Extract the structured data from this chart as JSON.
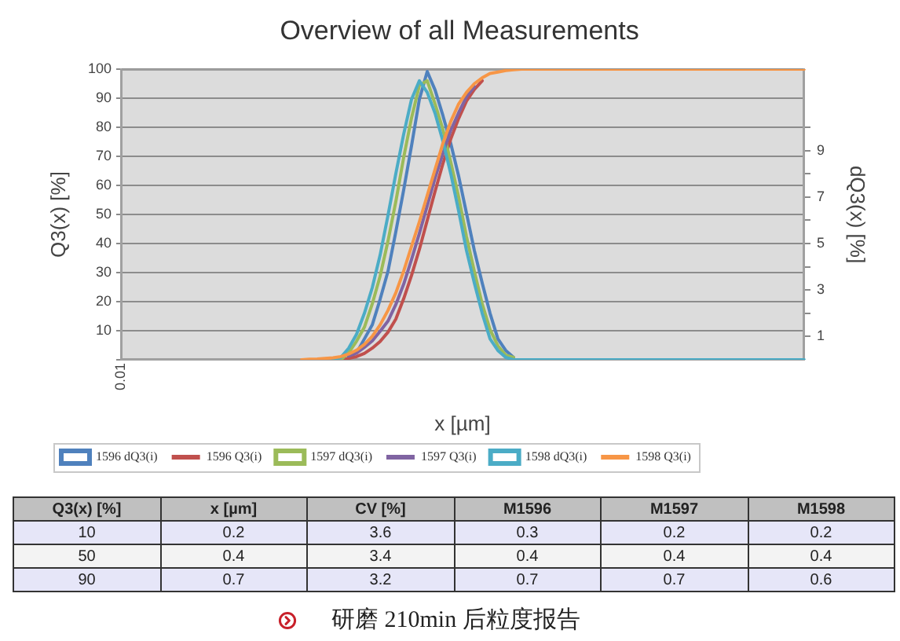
{
  "chart_data": [
    {
      "type": "line",
      "title": "Overview of all Measurements",
      "xlabel": "x [µm]",
      "ylabel": "Q3(x) [%]",
      "y2label": "dQ3(x) [%]",
      "grid": "y",
      "legend": "bottom",
      "categories": [
        "0.01",
        null,
        null,
        null,
        null,
        null,
        null,
        null,
        null,
        null,
        null,
        null,
        null,
        null,
        null,
        null,
        null,
        null,
        null,
        null,
        null,
        null,
        null,
        null,
        null,
        null,
        null,
        null,
        null,
        null,
        null,
        null,
        null,
        null,
        null,
        null,
        null,
        null,
        null,
        null,
        null,
        null,
        null,
        null,
        null,
        null,
        null,
        null,
        null,
        null,
        null,
        null,
        null,
        null,
        null,
        null,
        null,
        null,
        null,
        null,
        null,
        null,
        null,
        null,
        null,
        null,
        null,
        null,
        null,
        null,
        null,
        null,
        null,
        null,
        null,
        null,
        null,
        null,
        null,
        null,
        null,
        null,
        null,
        null,
        null,
        null,
        null,
        null
      ],
      "ylim": [
        0,
        100
      ],
      "yticks": [
        {
          "value": 0,
          "label": null
        },
        10,
        20,
        30,
        40,
        50,
        60,
        70,
        80,
        90,
        100
      ],
      "y2lim": [
        0,
        12.5
      ],
      "y2ticks": [
        1,
        {
          "value": 2,
          "label": null
        },
        3,
        {
          "value": 4,
          "label": null
        },
        5,
        {
          "value": 6,
          "label": null
        },
        7,
        {
          "value": 8,
          "label": null
        },
        9,
        {
          "value": 10,
          "label": null
        }
      ],
      "series": [
        {
          "name": "1596 dQ3(i)",
          "color": "#4f81bd",
          "axis": "y2",
          "values": [
            null,
            null,
            null,
            null,
            null,
            null,
            null,
            null,
            null,
            null,
            null,
            null,
            null,
            null,
            null,
            null,
            null,
            null,
            null,
            null,
            null,
            null,
            null,
            null,
            null,
            null,
            null,
            null,
            null,
            0.1,
            0.3,
            0.9,
            1.5,
            2.6,
            3.8,
            5.5,
            7.3,
            9.2,
            11.2,
            12.4,
            11.6,
            10.5,
            9.3,
            7.9,
            6.3,
            4.7,
            3.3,
            2.0,
            0.9,
            0.4,
            0.1,
            null,
            null,
            null,
            null,
            null,
            null,
            null,
            null,
            null,
            null,
            null,
            null,
            null,
            null,
            null,
            null,
            null,
            null,
            null,
            null,
            null,
            null,
            null,
            null,
            null,
            null,
            null,
            null,
            null,
            null,
            null,
            null,
            null,
            null,
            null,
            null,
            null
          ]
        },
        {
          "name": "1596 Q3(i)",
          "color": "#c0504d",
          "values": [
            null,
            null,
            null,
            null,
            null,
            null,
            null,
            null,
            null,
            null,
            null,
            null,
            null,
            null,
            null,
            null,
            null,
            null,
            null,
            null,
            null,
            null,
            null,
            null,
            null,
            null,
            null,
            null,
            0.2,
            0.5,
            1.1,
            2.2,
            4,
            6.3,
            9.5,
            14,
            21,
            29,
            38,
            48,
            58,
            67.5,
            76,
            83,
            89,
            93,
            96,
            null,
            null,
            null,
            null,
            null,
            null,
            null,
            null,
            null,
            null,
            null,
            null,
            null,
            null,
            null,
            null,
            null,
            null,
            null,
            null,
            null,
            null,
            null,
            null,
            null,
            null,
            null,
            null,
            null,
            null,
            null,
            null,
            null,
            null,
            null,
            null,
            null,
            null,
            null,
            null,
            null
          ]
        },
        {
          "name": "1597 dQ3(i)",
          "color": "#9bbb59",
          "axis": "y2",
          "values": [
            null,
            null,
            null,
            null,
            null,
            null,
            null,
            null,
            null,
            null,
            null,
            null,
            null,
            null,
            null,
            null,
            null,
            null,
            null,
            null,
            null,
            null,
            null,
            null,
            null,
            null,
            null,
            null,
            0,
            0.3,
            0.8,
            1.4,
            2.4,
            3.6,
            5.1,
            6.8,
            8.7,
            10.4,
            11.8,
            12.0,
            11.0,
            9.9,
            8.5,
            7.0,
            5.3,
            3.8,
            2.4,
            1.3,
            0.6,
            0.2,
            0.1,
            null,
            null,
            null,
            null,
            null,
            null,
            null,
            null,
            null,
            null,
            null,
            null,
            null,
            null,
            null,
            null,
            null,
            null,
            null,
            null,
            null,
            null,
            null,
            null,
            null,
            null,
            null,
            null,
            null,
            null,
            null,
            null,
            null,
            null,
            null,
            null,
            null
          ]
        },
        {
          "name": "1597 Q3(i)",
          "color": "#8064a2",
          "values": [
            null,
            null,
            null,
            null,
            null,
            null,
            null,
            null,
            null,
            null,
            null,
            null,
            null,
            null,
            null,
            null,
            null,
            null,
            null,
            null,
            null,
            null,
            null,
            null,
            null,
            null,
            null,
            null,
            null,
            1.3,
            2.3,
            4.3,
            6.5,
            9.8,
            13.3,
            19,
            26,
            34.5,
            43.5,
            53,
            62.5,
            71,
            79,
            85,
            90.5,
            94,
            null,
            null,
            null,
            null,
            null,
            null,
            null,
            null,
            null,
            null,
            null,
            null,
            null,
            null,
            null,
            null,
            null,
            null,
            null,
            null,
            null,
            null,
            null,
            null,
            null,
            null,
            null,
            null,
            null,
            null,
            null,
            null,
            null,
            null,
            null,
            null,
            null,
            null,
            null,
            null,
            null,
            null
          ]
        },
        {
          "name": "1598 dQ3(i)",
          "color": "#4bacc6",
          "axis": "y2",
          "values": [
            null,
            null,
            null,
            null,
            null,
            null,
            null,
            null,
            null,
            null,
            null,
            null,
            null,
            null,
            null,
            null,
            null,
            null,
            null,
            null,
            null,
            null,
            null,
            null,
            null,
            null,
            null,
            0,
            0.1,
            0.5,
            1.1,
            2.0,
            3.1,
            4.5,
            6.2,
            8.0,
            9.7,
            11.2,
            12.0,
            11.5,
            10.6,
            9.4,
            8.0,
            6.4,
            4.7,
            3.3,
            2.0,
            0.9,
            0.4,
            0.1,
            0,
            0,
            0,
            0,
            0,
            0,
            0,
            0,
            0,
            0,
            0,
            0,
            0,
            0,
            0,
            0,
            0,
            0,
            0,
            0,
            0,
            0,
            0,
            0,
            0,
            0,
            0,
            0,
            0,
            0,
            0,
            0,
            0,
            0,
            0,
            0,
            0,
            0
          ]
        },
        {
          "name": "1598 Q3(i)",
          "color": "#f79646",
          "values": [
            null,
            null,
            null,
            null,
            null,
            null,
            null,
            null,
            null,
            null,
            null,
            null,
            null,
            null,
            null,
            null,
            null,
            null,
            null,
            null,
            null,
            null,
            null,
            0,
            0.2,
            0.3,
            0.5,
            0.7,
            1.1,
            2.0,
            3.3,
            5.3,
            8.1,
            12,
            17,
            23,
            30.5,
            39,
            47.5,
            56.5,
            65.5,
            74.5,
            82,
            88,
            92,
            95,
            97,
            98.5,
            99,
            99.5,
            99.8,
            100,
            100,
            100,
            100,
            100,
            100,
            100,
            100,
            100,
            100,
            100,
            100,
            100,
            100,
            100,
            100,
            100,
            100,
            100,
            100,
            100,
            100,
            100,
            100,
            100,
            100,
            100,
            100,
            100,
            100,
            100,
            100,
            100,
            100,
            100,
            100,
            100
          ]
        }
      ]
    },
    {
      "type": "other",
      "ylabel": "Q3(x) [%]",
      "categories": [
        "x [µm]",
        "CV [%]",
        "M1596",
        "M1597",
        "M1598"
      ],
      "y_categories": [
        "10",
        "50",
        "90"
      ],
      "cell_labels": [
        [
          "0.2",
          "3.6",
          "0.3",
          "0.2",
          "0.2"
        ],
        [
          "0.4",
          "3.4",
          "0.4",
          "0.4",
          "0.4"
        ],
        [
          "0.7",
          "3.2",
          "0.7",
          "0.7",
          "0.6"
        ]
      ],
      "annotations": [
        "研磨 210min 后粒度报告"
      ]
    }
  ]
}
